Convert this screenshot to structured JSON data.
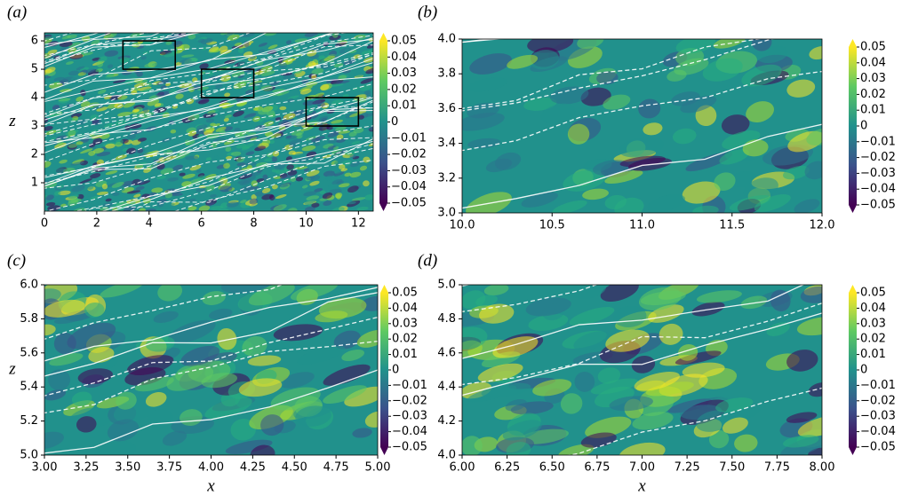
{
  "chart_data": [
    {
      "type": "heatmap",
      "panel_label": "(a)",
      "ylabel": "z",
      "xlim": [
        0,
        12.566
      ],
      "ylim": [
        0,
        6.283
      ],
      "xticks": [
        0,
        2,
        4,
        6,
        8,
        10,
        12
      ],
      "yticks": [
        1,
        2,
        3,
        4,
        5,
        6
      ],
      "clim": [
        -0.05,
        0.05
      ],
      "cticks": [
        0.05,
        0.04,
        0.03,
        0.02,
        0.01,
        0,
        {
          "value": -0.01,
          "label": "−0.01"
        },
        {
          "value": -0.02,
          "label": "−0.02"
        },
        {
          "value": -0.03,
          "label": "−0.03"
        },
        {
          "value": -0.04,
          "label": "−0.04"
        },
        {
          "value": -0.05,
          "label": "−0.05"
        }
      ],
      "boxes": [
        {
          "xlim": [
            3,
            5
          ],
          "ylim": [
            5,
            6
          ]
        },
        {
          "xlim": [
            6,
            8
          ],
          "ylim": [
            4,
            5
          ]
        },
        {
          "xlim": [
            10,
            12
          ],
          "ylim": [
            3,
            4
          ]
        }
      ]
    },
    {
      "type": "heatmap",
      "panel_label": "(b)",
      "xlim": [
        10,
        12
      ],
      "ylim": [
        3,
        4
      ],
      "xticks": [
        {
          "value": 10,
          "label": "10.0"
        },
        {
          "value": 10.5,
          "label": "10.5"
        },
        {
          "value": 11,
          "label": "11.0"
        },
        {
          "value": 11.5,
          "label": "11.5"
        },
        {
          "value": 12,
          "label": "12.0"
        }
      ],
      "yticks": [
        {
          "value": 3,
          "label": "3.0"
        },
        3.2,
        3.4,
        3.6,
        3.8,
        {
          "value": 4,
          "label": "4.0"
        }
      ],
      "clim": [
        -0.05,
        0.05
      ],
      "cticks": [
        0.05,
        0.04,
        0.03,
        0.02,
        0.01,
        0,
        {
          "value": -0.01,
          "label": "−0.01"
        },
        {
          "value": -0.02,
          "label": "−0.02"
        },
        {
          "value": -0.03,
          "label": "−0.03"
        },
        {
          "value": -0.04,
          "label": "−0.04"
        },
        {
          "value": -0.05,
          "label": "−0.05"
        }
      ]
    },
    {
      "type": "heatmap",
      "panel_label": "(c)",
      "ylabel": "z",
      "xlabel": "x",
      "xlim": [
        3,
        5
      ],
      "ylim": [
        5,
        6
      ],
      "xticks": [
        {
          "value": 3,
          "label": "3.00"
        },
        3.25,
        {
          "value": 3.5,
          "label": "3.50"
        },
        3.75,
        {
          "value": 4,
          "label": "4.00"
        },
        4.25,
        {
          "value": 4.5,
          "label": "4.50"
        },
        4.75,
        {
          "value": 5,
          "label": "5.00"
        }
      ],
      "yticks": [
        {
          "value": 5,
          "label": "5.0"
        },
        5.2,
        5.4,
        5.6,
        5.8,
        {
          "value": 6,
          "label": "6.0"
        }
      ],
      "clim": [
        -0.05,
        0.05
      ],
      "cticks": [
        0.05,
        0.04,
        0.03,
        0.02,
        0.01,
        0,
        {
          "value": -0.01,
          "label": "−0.01"
        },
        {
          "value": -0.02,
          "label": "−0.02"
        },
        {
          "value": -0.03,
          "label": "−0.03"
        },
        {
          "value": -0.04,
          "label": "−0.04"
        },
        {
          "value": -0.05,
          "label": "−0.05"
        }
      ]
    },
    {
      "type": "heatmap",
      "panel_label": "(d)",
      "xlabel": "x",
      "xlim": [
        6,
        8
      ],
      "ylim": [
        4,
        5
      ],
      "xticks": [
        {
          "value": 6,
          "label": "6.00"
        },
        6.25,
        {
          "value": 6.5,
          "label": "6.50"
        },
        6.75,
        {
          "value": 7,
          "label": "7.00"
        },
        7.25,
        {
          "value": 7.5,
          "label": "7.50"
        },
        7.75,
        {
          "value": 8,
          "label": "8.00"
        }
      ],
      "yticks": [
        {
          "value": 4,
          "label": "4.0"
        },
        4.2,
        4.4,
        4.6,
        4.8,
        {
          "value": 5,
          "label": "5.0"
        }
      ],
      "clim": [
        -0.05,
        0.05
      ],
      "cticks": [
        0.05,
        0.04,
        0.03,
        0.02,
        0.01,
        0,
        {
          "value": -0.01,
          "label": "−0.01"
        },
        {
          "value": -0.02,
          "label": "−0.02"
        },
        {
          "value": -0.03,
          "label": "−0.03"
        },
        {
          "value": -0.04,
          "label": "−0.04"
        },
        {
          "value": -0.05,
          "label": "−0.05"
        }
      ]
    }
  ]
}
